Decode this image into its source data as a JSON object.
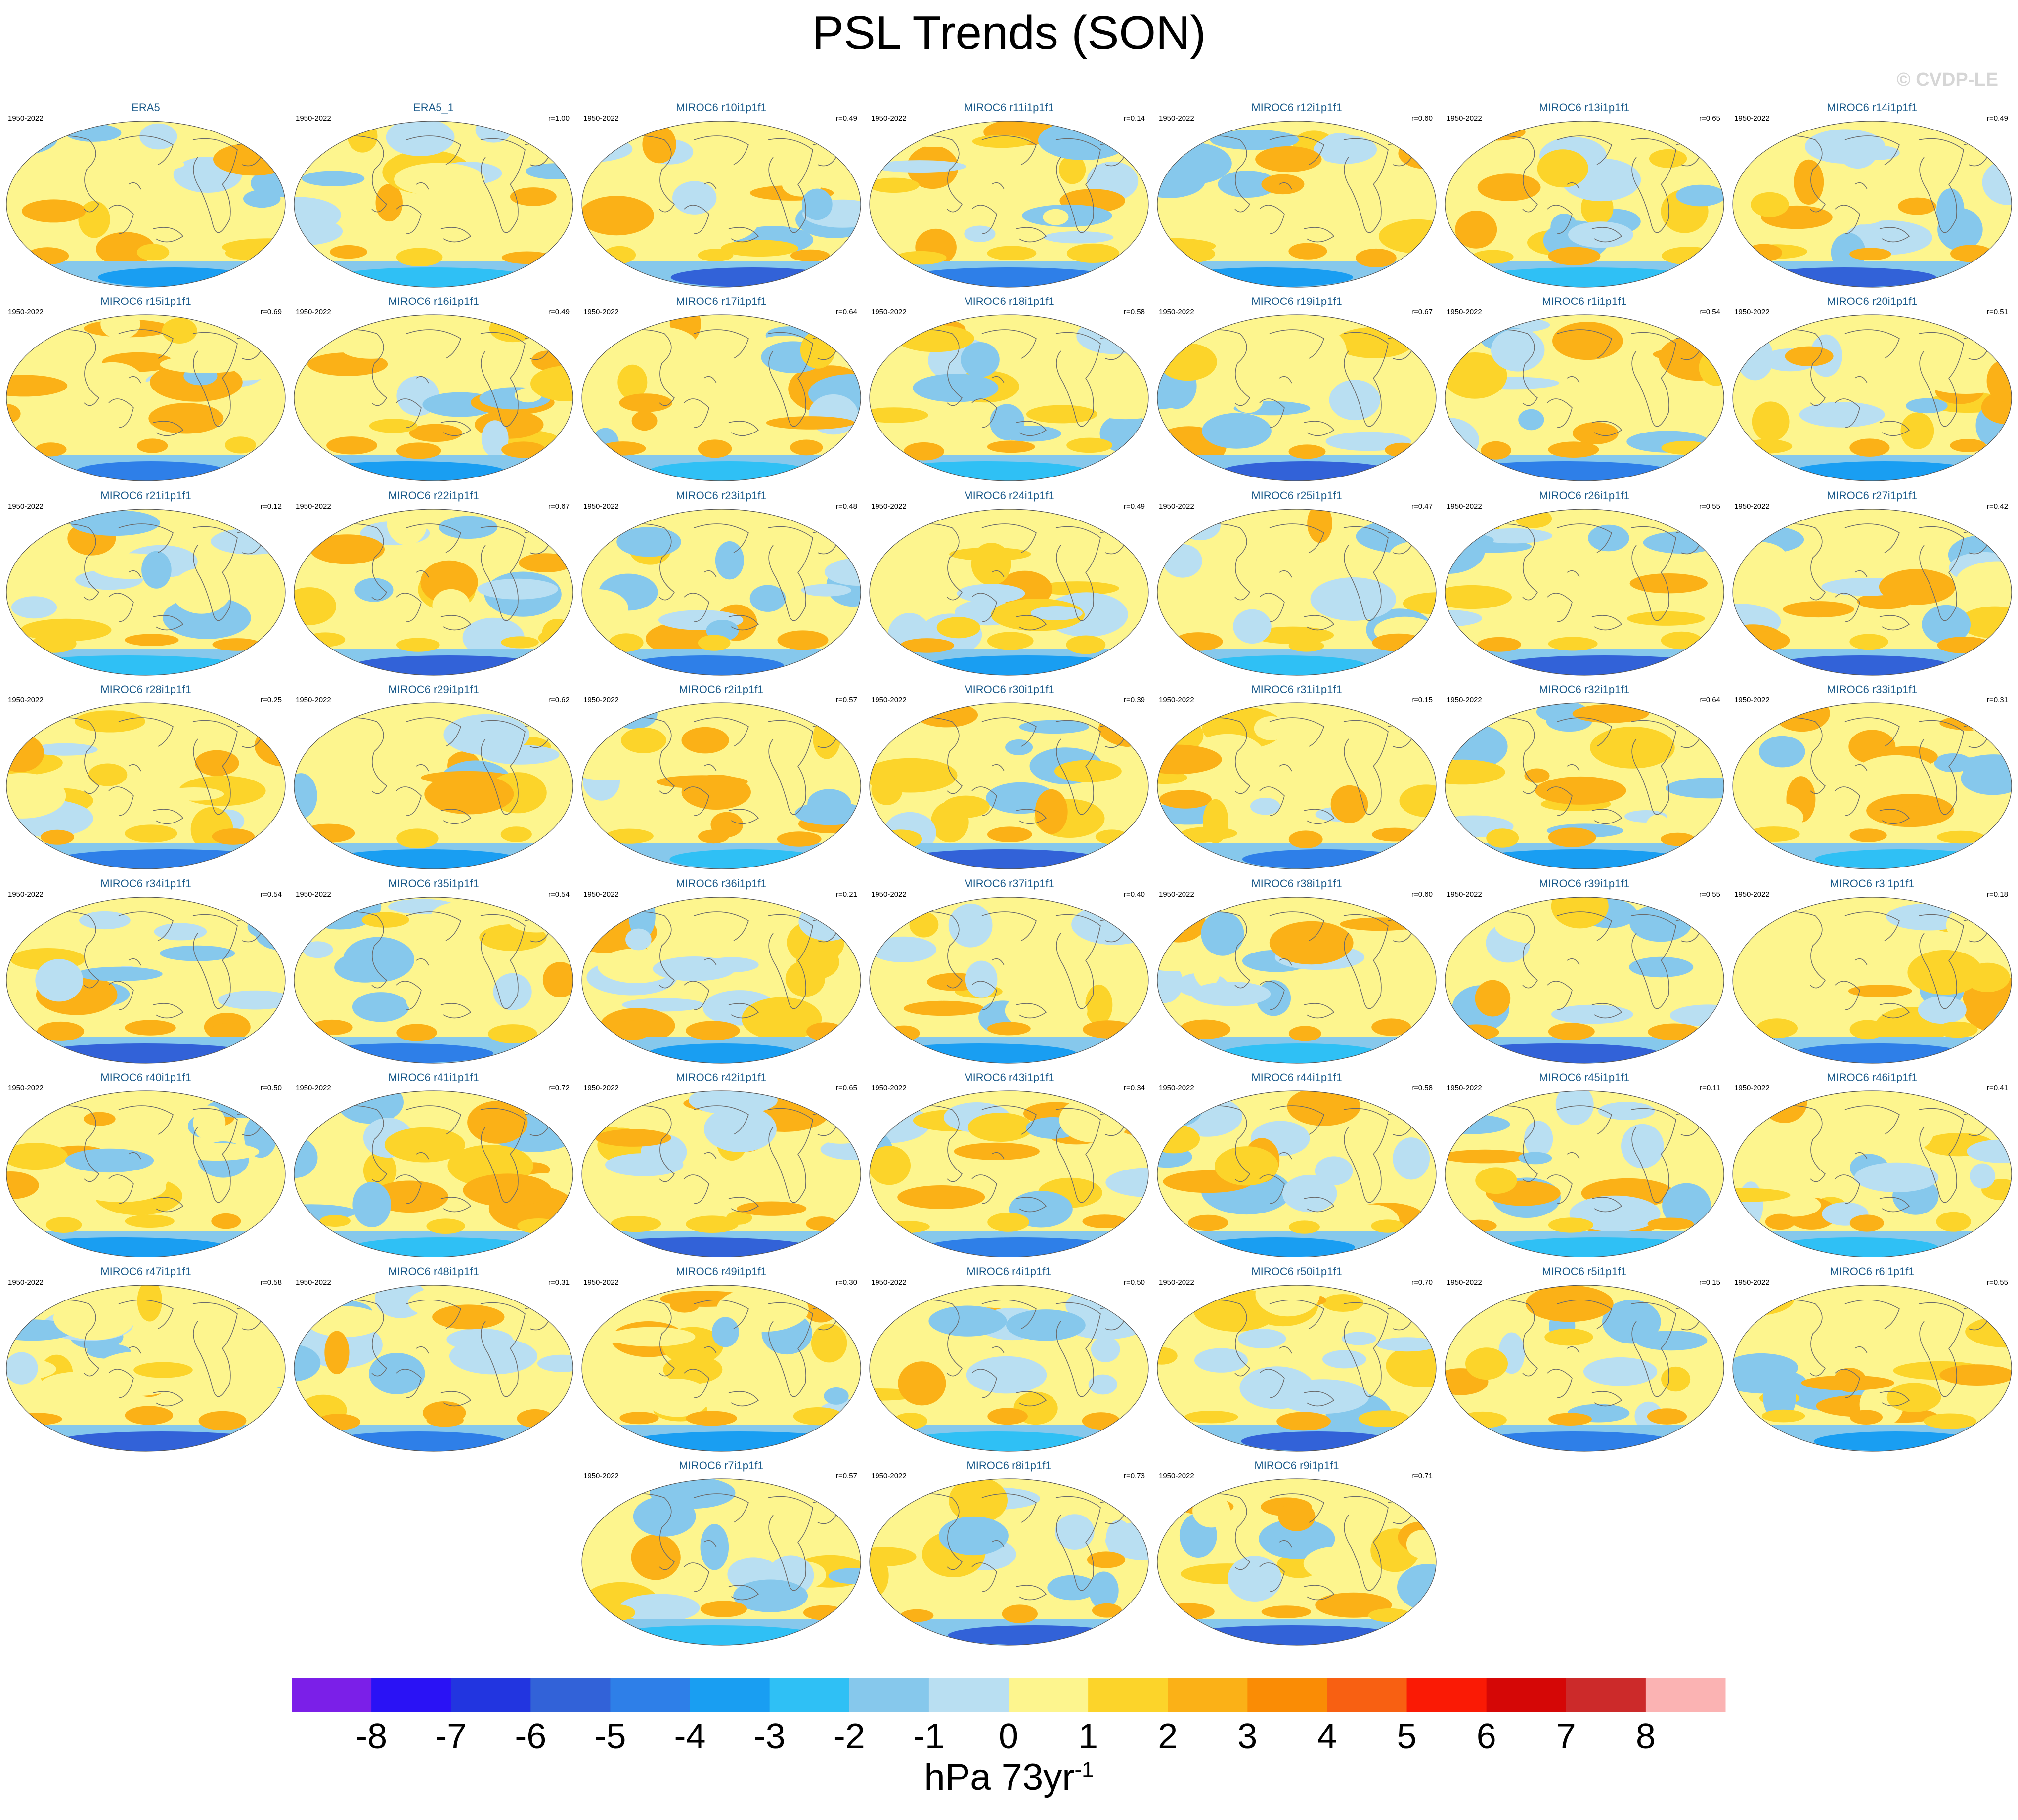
{
  "title": "PSL Trends (SON)",
  "watermark": "© CVDP-LE",
  "period": "1950-2022",
  "panels": [
    {
      "name": "ERA5",
      "r": ""
    },
    {
      "name": "ERA5_1",
      "r": "r=1.00"
    },
    {
      "name": "MIROC6 r10i1p1f1",
      "r": "r=0.49"
    },
    {
      "name": "MIROC6 r11i1p1f1",
      "r": "r=0.14"
    },
    {
      "name": "MIROC6 r12i1p1f1",
      "r": "r=0.60"
    },
    {
      "name": "MIROC6 r13i1p1f1",
      "r": "r=0.65"
    },
    {
      "name": "MIROC6 r14i1p1f1",
      "r": "r=0.49"
    },
    {
      "name": "MIROC6 r15i1p1f1",
      "r": "r=0.69"
    },
    {
      "name": "MIROC6 r16i1p1f1",
      "r": "r=0.49"
    },
    {
      "name": "MIROC6 r17i1p1f1",
      "r": "r=0.64"
    },
    {
      "name": "MIROC6 r18i1p1f1",
      "r": "r=0.58"
    },
    {
      "name": "MIROC6 r19i1p1f1",
      "r": "r=0.67"
    },
    {
      "name": "MIROC6 r1i1p1f1",
      "r": "r=0.54"
    },
    {
      "name": "MIROC6 r20i1p1f1",
      "r": "r=0.51"
    },
    {
      "name": "MIROC6 r21i1p1f1",
      "r": "r=0.12"
    },
    {
      "name": "MIROC6 r22i1p1f1",
      "r": "r=0.67"
    },
    {
      "name": "MIROC6 r23i1p1f1",
      "r": "r=0.48"
    },
    {
      "name": "MIROC6 r24i1p1f1",
      "r": "r=0.49"
    },
    {
      "name": "MIROC6 r25i1p1f1",
      "r": "r=0.47"
    },
    {
      "name": "MIROC6 r26i1p1f1",
      "r": "r=0.55"
    },
    {
      "name": "MIROC6 r27i1p1f1",
      "r": "r=0.42"
    },
    {
      "name": "MIROC6 r28i1p1f1",
      "r": "r=0.25"
    },
    {
      "name": "MIROC6 r29i1p1f1",
      "r": "r=0.62"
    },
    {
      "name": "MIROC6 r2i1p1f1",
      "r": "r=0.57"
    },
    {
      "name": "MIROC6 r30i1p1f1",
      "r": "r=0.39"
    },
    {
      "name": "MIROC6 r31i1p1f1",
      "r": "r=0.15"
    },
    {
      "name": "MIROC6 r32i1p1f1",
      "r": "r=0.64"
    },
    {
      "name": "MIROC6 r33i1p1f1",
      "r": "r=0.31"
    },
    {
      "name": "MIROC6 r34i1p1f1",
      "r": "r=0.54"
    },
    {
      "name": "MIROC6 r35i1p1f1",
      "r": "r=0.54"
    },
    {
      "name": "MIROC6 r36i1p1f1",
      "r": "r=0.21"
    },
    {
      "name": "MIROC6 r37i1p1f1",
      "r": "r=0.40"
    },
    {
      "name": "MIROC6 r38i1p1f1",
      "r": "r=0.60"
    },
    {
      "name": "MIROC6 r39i1p1f1",
      "r": "r=0.55"
    },
    {
      "name": "MIROC6 r3i1p1f1",
      "r": "r=0.18"
    },
    {
      "name": "MIROC6 r40i1p1f1",
      "r": "r=0.50"
    },
    {
      "name": "MIROC6 r41i1p1f1",
      "r": "r=0.72"
    },
    {
      "name": "MIROC6 r42i1p1f1",
      "r": "r=0.65"
    },
    {
      "name": "MIROC6 r43i1p1f1",
      "r": "r=0.34"
    },
    {
      "name": "MIROC6 r44i1p1f1",
      "r": "r=0.58"
    },
    {
      "name": "MIROC6 r45i1p1f1",
      "r": "r=0.11"
    },
    {
      "name": "MIROC6 r46i1p1f1",
      "r": "r=0.41"
    },
    {
      "name": "MIROC6 r47i1p1f1",
      "r": "r=0.58"
    },
    {
      "name": "MIROC6 r48i1p1f1",
      "r": "r=0.31"
    },
    {
      "name": "MIROC6 r49i1p1f1",
      "r": "r=0.30"
    },
    {
      "name": "MIROC6 r4i1p1f1",
      "r": "r=0.50"
    },
    {
      "name": "MIROC6 r50i1p1f1",
      "r": "r=0.70"
    },
    {
      "name": "MIROC6 r5i1p1f1",
      "r": "r=0.15"
    },
    {
      "name": "MIROC6 r6i1p1f1",
      "r": "r=0.55"
    },
    {
      "name": "MIROC6 r7i1p1f1",
      "r": "r=0.57"
    },
    {
      "name": "MIROC6 r8i1p1f1",
      "r": "r=0.73"
    },
    {
      "name": "MIROC6 r9i1p1f1",
      "r": "r=0.71"
    }
  ],
  "colorbar": {
    "colors": [
      "#7b1fe8",
      "#2a12f5",
      "#2235e0",
      "#3262d8",
      "#2e7fe8",
      "#199ef2",
      "#2fc0f5",
      "#86c8ec",
      "#b9dff2",
      "#fdf58e",
      "#fcd42a",
      "#fbb117",
      "#fa8c05",
      "#f86012",
      "#fa1a05",
      "#d50706",
      "#cc2a2a",
      "#fbb3b3"
    ],
    "tick_labels": [
      "-8",
      "-7",
      "-6",
      "-5",
      "-4",
      "-3",
      "-2",
      "-1",
      "0",
      "1",
      "2",
      "3",
      "4",
      "5",
      "6",
      "7",
      "8"
    ],
    "units_main": "hPa 73yr",
    "units_exp": "-1"
  }
}
